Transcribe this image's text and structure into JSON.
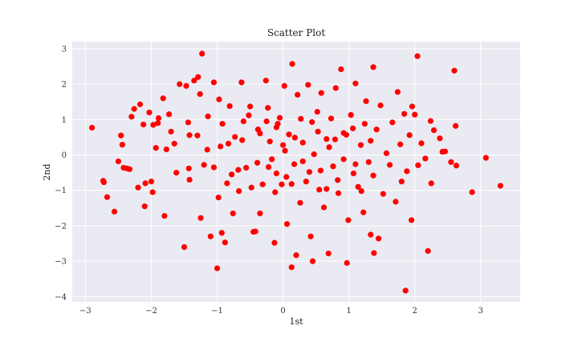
{
  "chart_data": {
    "type": "scatter",
    "title": "Scatter Plot",
    "xlabel": "1st",
    "ylabel": "2nd",
    "xlim": [
      -3.2,
      3.6
    ],
    "ylim": [
      -4.15,
      3.2
    ],
    "xticks": [
      -3,
      -2,
      -1,
      0,
      1,
      2,
      3
    ],
    "yticks": [
      -4,
      -3,
      -2,
      -1,
      0,
      1,
      2,
      3
    ],
    "xtick_labels": [
      "−3",
      "−2",
      "−1",
      "0",
      "1",
      "2",
      "3"
    ],
    "ytick_labels": [
      "−4",
      "−3",
      "−2",
      "−1",
      "0",
      "1",
      "2",
      "3"
    ],
    "grid": true,
    "legend": "none",
    "point_color": "#ff0000",
    "plot_background": "#eaeaf2",
    "grid_color": "#ffffff",
    "series": [
      {
        "points": [
          [
            -2.9,
            0.77
          ],
          [
            -2.73,
            -0.73
          ],
          [
            -2.72,
            -0.77
          ],
          [
            -2.67,
            -1.19
          ],
          [
            -2.56,
            -1.6
          ],
          [
            -2.5,
            -0.18
          ],
          [
            -2.46,
            0.55
          ],
          [
            -2.44,
            0.29
          ],
          [
            -2.42,
            -0.36
          ],
          [
            -2.37,
            -0.38
          ],
          [
            -2.33,
            -0.4
          ],
          [
            -2.3,
            1.08
          ],
          [
            -2.26,
            1.3
          ],
          [
            -2.2,
            -0.92
          ],
          [
            -2.17,
            1.43
          ],
          [
            -2.12,
            0.86
          ],
          [
            -2.09,
            -0.8
          ],
          [
            -2.1,
            -1.45
          ],
          [
            -2.03,
            1.2
          ],
          [
            -2.0,
            -0.75
          ],
          [
            -1.98,
            -1.05
          ],
          [
            -1.97,
            0.85
          ],
          [
            -1.93,
            0.2
          ],
          [
            -1.9,
            0.9
          ],
          [
            -1.89,
            1.04
          ],
          [
            -1.82,
            1.6
          ],
          [
            -1.8,
            -1.72
          ],
          [
            -1.77,
            0.16
          ],
          [
            -1.73,
            1.15
          ],
          [
            -1.7,
            0.66
          ],
          [
            -1.65,
            0.32
          ],
          [
            -1.62,
            -0.5
          ],
          [
            -1.57,
            2.0
          ],
          [
            -1.5,
            -2.6
          ],
          [
            -1.47,
            1.95
          ],
          [
            -1.44,
            0.92
          ],
          [
            -1.43,
            -0.38
          ],
          [
            -1.42,
            0.56
          ],
          [
            -1.35,
            2.1
          ],
          [
            -1.29,
            2.2
          ],
          [
            -1.26,
            1.72
          ],
          [
            -1.25,
            -1.78
          ],
          [
            -1.23,
            2.86
          ],
          [
            -1.2,
            -0.28
          ],
          [
            -1.14,
            1.09
          ],
          [
            -1.1,
            -2.3
          ],
          [
            -1.05,
            2.05
          ],
          [
            -1.0,
            -3.2
          ],
          [
            -0.97,
            1.57
          ],
          [
            -0.95,
            0.24
          ],
          [
            -0.93,
            -2.2
          ],
          [
            -0.88,
            -2.47
          ],
          [
            -0.85,
            -0.8
          ],
          [
            -0.81,
            1.38
          ],
          [
            -0.76,
            -1.65
          ],
          [
            -0.73,
            0.51
          ],
          [
            -0.67,
            -1.02
          ],
          [
            -0.63,
            2.05
          ],
          [
            -0.6,
            0.95
          ],
          [
            -0.56,
            -0.36
          ],
          [
            -0.5,
            1.37
          ],
          [
            -0.45,
            -2.17
          ],
          [
            -0.42,
            -2.16
          ],
          [
            -0.38,
            0.72
          ],
          [
            -0.35,
            -1.65
          ],
          [
            -0.31,
            -0.83
          ],
          [
            -0.26,
            2.1
          ],
          [
            -0.23,
            1.33
          ],
          [
            -0.2,
            0.38
          ],
          [
            -0.17,
            -0.12
          ],
          [
            -0.13,
            -2.48
          ],
          [
            -0.1,
            -0.52
          ],
          [
            -0.08,
            0.88
          ],
          [
            -0.05,
            1.05
          ],
          [
            -0.02,
            -0.83
          ],
          [
            0.02,
            1.95
          ],
          [
            0.03,
            0.12
          ],
          [
            0.06,
            -1.95
          ],
          [
            0.09,
            0.58
          ],
          [
            0.13,
            -3.17
          ],
          [
            0.14,
            2.57
          ],
          [
            0.17,
            -0.26
          ],
          [
            0.2,
            -2.83
          ],
          [
            0.22,
            1.7
          ],
          [
            0.26,
            -1.35
          ],
          [
            0.3,
            0.35
          ],
          [
            0.35,
            -0.75
          ],
          [
            0.38,
            1.98
          ],
          [
            0.42,
            -2.3
          ],
          [
            0.45,
            -3.0
          ],
          [
            0.47,
            0.02
          ],
          [
            0.52,
            1.22
          ],
          [
            0.55,
            -0.98
          ],
          [
            0.58,
            1.75
          ],
          [
            0.62,
            -1.48
          ],
          [
            0.66,
            0.45
          ],
          [
            0.69,
            -2.78
          ],
          [
            0.73,
            1.03
          ],
          [
            0.76,
            -0.32
          ],
          [
            0.8,
            1.89
          ],
          [
            0.84,
            -1.08
          ],
          [
            0.88,
            2.42
          ],
          [
            0.92,
            0.62
          ],
          [
            0.97,
            -3.05
          ],
          [
            0.99,
            -1.84
          ],
          [
            1.03,
            1.13
          ],
          [
            1.07,
            -0.52
          ],
          [
            1.1,
            2.02
          ],
          [
            1.14,
            -0.9
          ],
          [
            1.18,
            0.28
          ],
          [
            1.22,
            -1.62
          ],
          [
            1.26,
            1.52
          ],
          [
            1.3,
            -0.2
          ],
          [
            1.33,
            -2.25
          ],
          [
            1.37,
            2.48
          ],
          [
            1.38,
            -2.77
          ],
          [
            1.42,
            0.72
          ],
          [
            1.45,
            -2.36
          ],
          [
            1.48,
            1.4
          ],
          [
            1.52,
            -1.1
          ],
          [
            1.57,
            0.05
          ],
          [
            1.62,
            -0.28
          ],
          [
            1.66,
            0.92
          ],
          [
            1.71,
            -1.32
          ],
          [
            1.74,
            1.78
          ],
          [
            1.78,
            0.3
          ],
          [
            1.8,
            -0.75
          ],
          [
            1.84,
            1.16
          ],
          [
            1.86,
            -3.83
          ],
          [
            1.88,
            -0.46
          ],
          [
            1.92,
            0.56
          ],
          [
            1.95,
            -1.84
          ],
          [
            1.96,
            1.37
          ],
          [
            2.0,
            1.14
          ],
          [
            2.04,
            2.79
          ],
          [
            2.05,
            -0.29
          ],
          [
            2.1,
            0.33
          ],
          [
            2.16,
            -0.1
          ],
          [
            2.2,
            -2.71
          ],
          [
            2.24,
            0.96
          ],
          [
            2.25,
            -0.8
          ],
          [
            2.29,
            0.7
          ],
          [
            2.38,
            0.47
          ],
          [
            2.42,
            0.09
          ],
          [
            2.46,
            0.1
          ],
          [
            2.55,
            -0.2
          ],
          [
            2.6,
            2.38
          ],
          [
            2.62,
            0.82
          ],
          [
            2.63,
            -0.3
          ],
          [
            2.87,
            -1.05
          ],
          [
            3.08,
            -0.08
          ],
          [
            3.3,
            -0.87
          ],
          [
            -1.3,
            0.55
          ],
          [
            -1.05,
            -0.35
          ],
          [
            -0.92,
            0.88
          ],
          [
            -0.78,
            -0.55
          ],
          [
            -0.62,
            0.42
          ],
          [
            -0.48,
            -0.92
          ],
          [
            -0.35,
            0.61
          ],
          [
            -0.22,
            -0.34
          ],
          [
            -0.1,
            0.78
          ],
          [
            0.05,
            -0.62
          ],
          [
            0.18,
            0.49
          ],
          [
            0.3,
            -0.18
          ],
          [
            0.44,
            0.93
          ],
          [
            0.57,
            -0.44
          ],
          [
            0.7,
            0.22
          ],
          [
            0.83,
            -0.71
          ],
          [
            0.96,
            0.57
          ],
          [
            1.1,
            -0.26
          ],
          [
            1.24,
            0.88
          ],
          [
            1.37,
            -0.58
          ],
          [
            -1.42,
            -0.7
          ],
          [
            -1.15,
            0.15
          ],
          [
            -0.98,
            -1.2
          ],
          [
            -0.83,
            0.32
          ],
          [
            -0.68,
            -0.42
          ],
          [
            -0.52,
            1.12
          ],
          [
            -0.39,
            -0.22
          ],
          [
            -0.25,
            0.95
          ],
          [
            -0.12,
            -1.05
          ],
          [
            0.0,
            0.28
          ],
          [
            0.13,
            -0.82
          ],
          [
            0.27,
            1.02
          ],
          [
            0.4,
            -0.48
          ],
          [
            0.53,
            0.66
          ],
          [
            0.66,
            -0.96
          ],
          [
            0.79,
            0.44
          ],
          [
            0.92,
            -0.12
          ],
          [
            1.06,
            0.75
          ],
          [
            1.19,
            -1.02
          ],
          [
            1.33,
            0.4
          ]
        ]
      }
    ]
  }
}
